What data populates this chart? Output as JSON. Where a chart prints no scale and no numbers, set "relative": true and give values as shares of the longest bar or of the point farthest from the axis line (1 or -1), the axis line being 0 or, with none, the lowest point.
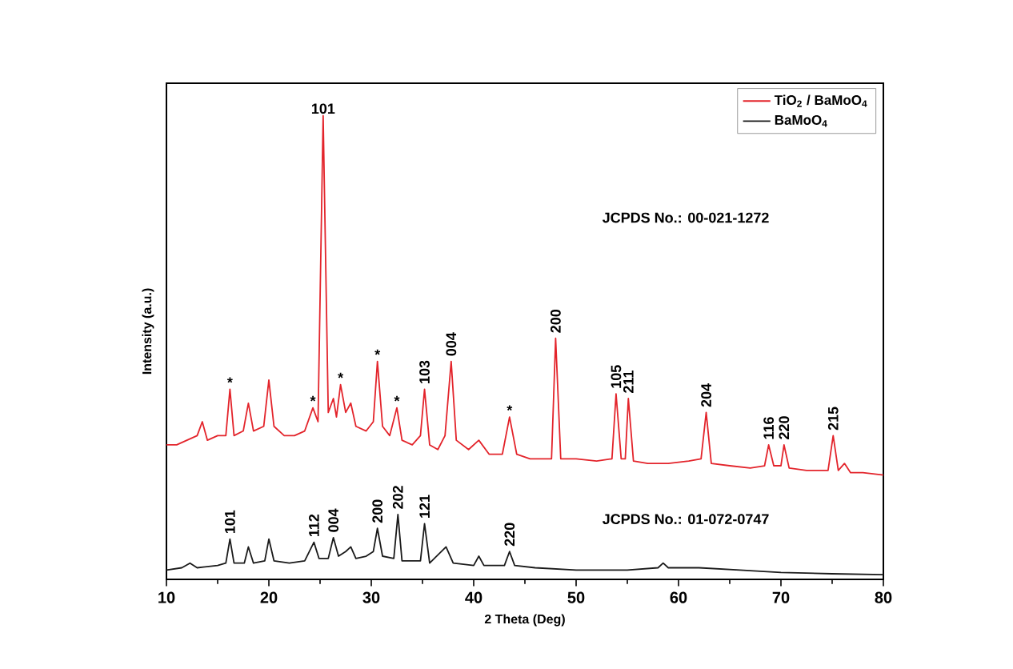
{
  "chart_data": {
    "type": "line",
    "relative": true,
    "xlabel": "2 Theta (Deg)",
    "ylabel": "Intensity (a.u.)",
    "xlim": [
      10,
      80
    ],
    "xticks": [
      10,
      20,
      30,
      40,
      50,
      60,
      70,
      80
    ],
    "legend": "top right",
    "series": [
      {
        "name": "TiO$_{2}$ / BaMoO$_{4}$",
        "color": "#e3242b",
        "x": [
          10,
          11,
          12,
          13,
          13.5,
          14,
          15,
          15.8,
          16.2,
          16.6,
          17.5,
          18,
          18.5,
          19.5,
          20,
          20.5,
          21.5,
          22.5,
          23.5,
          24.3,
          24.8,
          25.3,
          25.8,
          26.3,
          26.6,
          27,
          27.5,
          28,
          28.5,
          29.5,
          30.2,
          30.6,
          31.1,
          31.8,
          32.5,
          33,
          34,
          34.8,
          35.2,
          35.7,
          36.5,
          37.2,
          37.8,
          38.3,
          39.5,
          40.5,
          41.5,
          42.8,
          43.5,
          44.2,
          45.5,
          46.5,
          47.6,
          48,
          48.5,
          50,
          52,
          53.5,
          53.9,
          54.4,
          54.8,
          55.1,
          55.6,
          57,
          59,
          61,
          62.2,
          62.7,
          63.2,
          65,
          67,
          68.4,
          68.8,
          69.3,
          70,
          70.3,
          70.8,
          72.5,
          74.6,
          75.1,
          75.6,
          76.2,
          76.8,
          78,
          80
        ],
        "values": [
          0.29,
          0.29,
          0.3,
          0.31,
          0.34,
          0.3,
          0.31,
          0.31,
          0.41,
          0.31,
          0.32,
          0.38,
          0.32,
          0.33,
          0.43,
          0.33,
          0.31,
          0.31,
          0.32,
          0.37,
          0.34,
          1.0,
          0.36,
          0.39,
          0.35,
          0.42,
          0.36,
          0.38,
          0.33,
          0.32,
          0.34,
          0.47,
          0.33,
          0.31,
          0.37,
          0.3,
          0.29,
          0.31,
          0.41,
          0.29,
          0.28,
          0.31,
          0.47,
          0.3,
          0.28,
          0.3,
          0.27,
          0.27,
          0.35,
          0.27,
          0.26,
          0.26,
          0.26,
          0.52,
          0.26,
          0.26,
          0.255,
          0.26,
          0.4,
          0.26,
          0.26,
          0.39,
          0.255,
          0.25,
          0.25,
          0.255,
          0.26,
          0.36,
          0.25,
          0.245,
          0.24,
          0.245,
          0.29,
          0.245,
          0.245,
          0.29,
          0.24,
          0.235,
          0.235,
          0.31,
          0.235,
          0.25,
          0.23,
          0.23,
          0.225
        ]
      },
      {
        "name": "BaMoO$_{4}$",
        "color": "#1a1a1a",
        "x": [
          10,
          11.5,
          12.3,
          13,
          15,
          15.8,
          16.2,
          16.6,
          17.6,
          18,
          18.5,
          19.6,
          20,
          20.5,
          22,
          23.5,
          24.4,
          24.9,
          25.8,
          26.3,
          26.8,
          27.5,
          28,
          28.5,
          29.5,
          30.2,
          30.6,
          31.1,
          32.2,
          32.6,
          33,
          34.8,
          35.2,
          35.7,
          37.3,
          38,
          40,
          40.5,
          41,
          43,
          43.5,
          44,
          46,
          50,
          55,
          58,
          58.5,
          59,
          62,
          66,
          70,
          75,
          80
        ],
        "values": [
          0.02,
          0.025,
          0.035,
          0.025,
          0.03,
          0.035,
          0.087,
          0.035,
          0.035,
          0.07,
          0.035,
          0.04,
          0.087,
          0.04,
          0.035,
          0.04,
          0.08,
          0.045,
          0.045,
          0.09,
          0.05,
          0.06,
          0.07,
          0.045,
          0.05,
          0.06,
          0.11,
          0.05,
          0.045,
          0.14,
          0.04,
          0.04,
          0.12,
          0.035,
          0.07,
          0.035,
          0.03,
          0.05,
          0.03,
          0.03,
          0.06,
          0.03,
          0.025,
          0.02,
          0.02,
          0.025,
          0.035,
          0.025,
          0.025,
          0.02,
          0.015,
          0.012,
          0.01
        ]
      }
    ],
    "annotations": [
      {
        "text": "101",
        "x": 25.3,
        "y": 1.0
      },
      {
        "text": "*",
        "x": 16.2,
        "y": 0.41
      },
      {
        "text": "*",
        "x": 24.3,
        "y": 0.37
      },
      {
        "text": "*",
        "x": 27,
        "y": 0.42
      },
      {
        "text": "*",
        "x": 30.6,
        "y": 0.47
      },
      {
        "text": "*",
        "x": 32.5,
        "y": 0.37
      },
      {
        "text": "*",
        "x": 43.5,
        "y": 0.35
      },
      {
        "text": "103",
        "x": 35.2,
        "y": 0.41
      },
      {
        "text": "004",
        "x": 37.8,
        "y": 0.47
      },
      {
        "text": "200",
        "x": 48,
        "y": 0.52
      },
      {
        "text": "105",
        "x": 53.9,
        "y": 0.4
      },
      {
        "text": "211",
        "x": 55.1,
        "y": 0.39
      },
      {
        "text": "204",
        "x": 62.7,
        "y": 0.36
      },
      {
        "text": "116",
        "x": 68.8,
        "y": 0.29
      },
      {
        "text": "220",
        "x": 70.3,
        "y": 0.29
      },
      {
        "text": "215",
        "x": 75.1,
        "y": 0.31
      },
      {
        "text": "101",
        "x": 16.2,
        "y": 0.087
      },
      {
        "text": "112",
        "x": 24.4,
        "y": 0.08
      },
      {
        "text": "004",
        "x": 26.3,
        "y": 0.09
      },
      {
        "text": "200",
        "x": 30.6,
        "y": 0.11
      },
      {
        "text": "202",
        "x": 32.6,
        "y": 0.14
      },
      {
        "text": "121",
        "x": 35.2,
        "y": 0.12
      },
      {
        "text": "220",
        "x": 43.5,
        "y": 0.06
      },
      "JCPDS No.: 00-021-1272",
      "JCPDS No.: 01-072-0747"
    ]
  }
}
